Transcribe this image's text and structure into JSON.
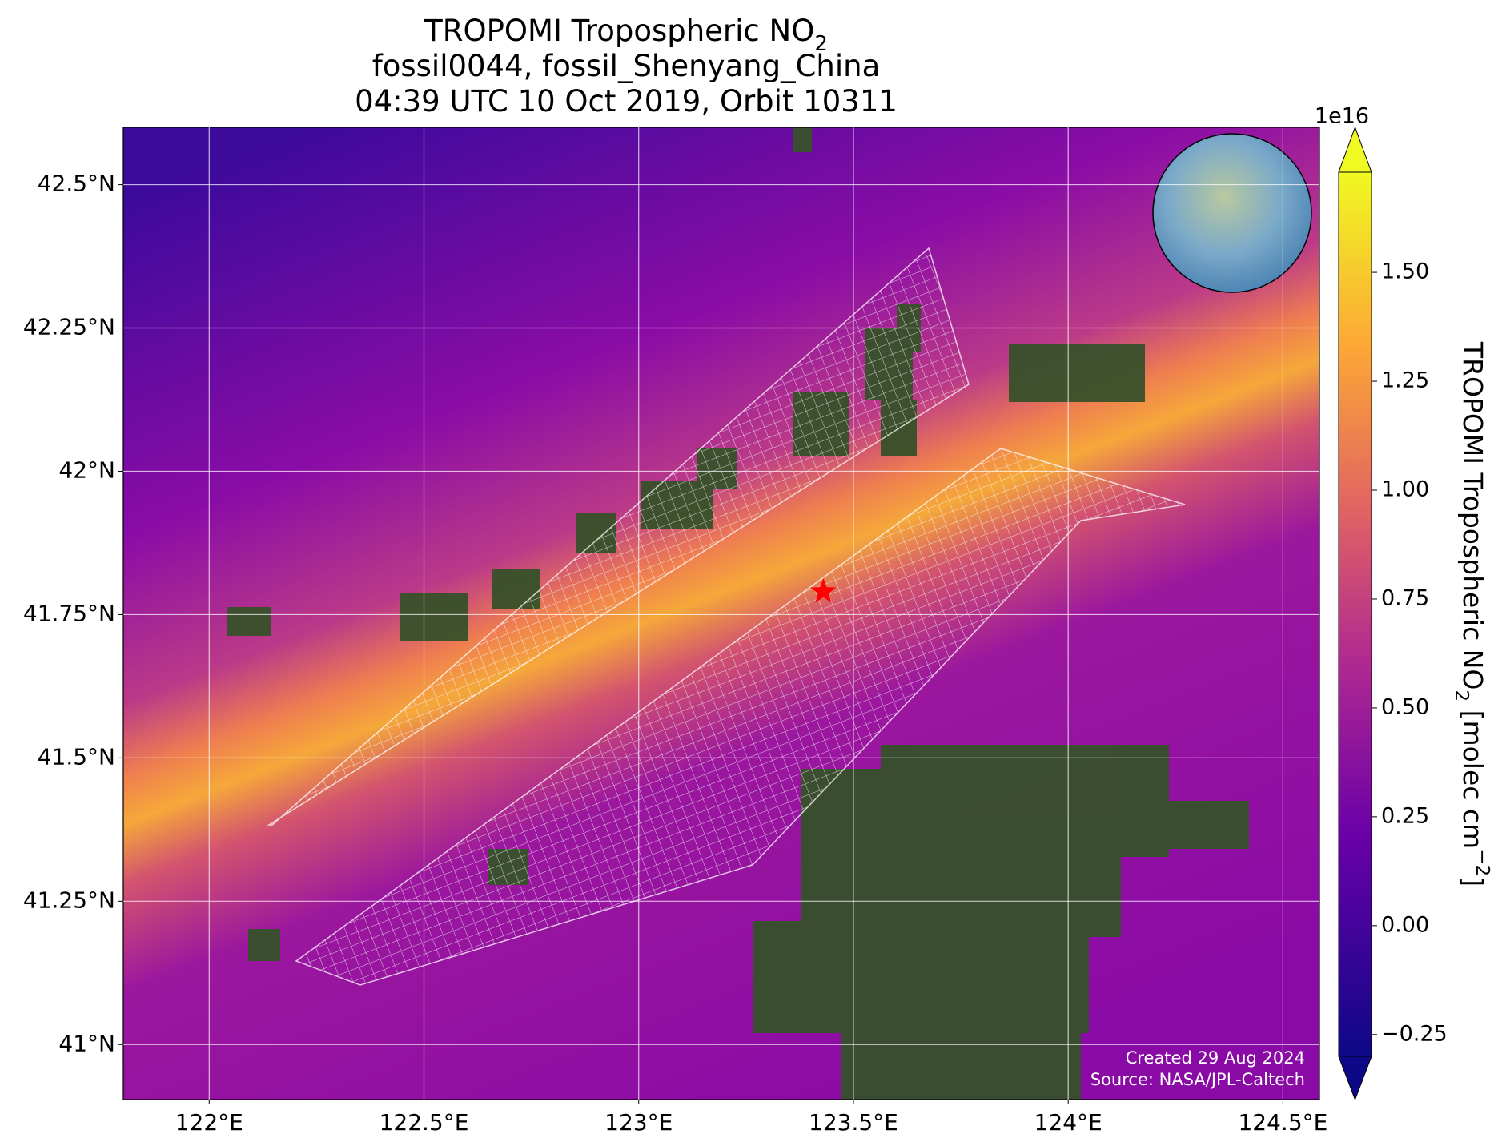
{
  "chart_data": {
    "type": "map",
    "title": [
      [
        {
          "text": "TROPOMI Tropospheric NO"
        },
        {
          "sub": "2"
        }
      ],
      [
        {
          "text": "fossil0044, fossil_Shenyang_China"
        }
      ],
      [
        {
          "text": "04:39 UTC 10 Oct 2019, Orbit 10311"
        }
      ]
    ],
    "xlim": [
      121.8,
      124.585
    ],
    "ylim": [
      40.904,
      42.6
    ],
    "xticks": [
      {
        "value": 122,
        "label": "122°E"
      },
      {
        "value": 122.5,
        "label": "122.5°E"
      },
      {
        "value": 123,
        "label": "123°E"
      },
      {
        "value": 123.5,
        "label": "123.5°E"
      },
      {
        "value": 124,
        "label": "124°E"
      },
      {
        "value": 124.5,
        "label": "124.5°E"
      }
    ],
    "yticks": [
      {
        "value": 41,
        "label": "41°N"
      },
      {
        "value": 41.25,
        "label": "41.25°N"
      },
      {
        "value": 41.5,
        "label": "41.5°N"
      },
      {
        "value": 41.75,
        "label": "41.75°N"
      },
      {
        "value": 42,
        "label": "42°N"
      },
      {
        "value": 42.25,
        "label": "42.25°N"
      },
      {
        "value": 42.5,
        "label": "42.5°N"
      }
    ],
    "grid": true,
    "marker": {
      "x": 123.43,
      "y": 41.79,
      "color": "#ff0000"
    },
    "colorbar": {
      "lim": [
        -0.3,
        1.73
      ],
      "ticks": [
        {
          "value": -0.25,
          "label": "−0.25"
        },
        {
          "value": 0,
          "label": "0.00"
        },
        0.25,
        {
          "value": 0.5,
          "label": "0.50"
        },
        0.75,
        {
          "value": 1,
          "label": "1.00"
        },
        1.25,
        {
          "value": 1.5,
          "label": "1.50"
        }
      ],
      "exponent": "1e16",
      "label": [
        {
          "text": "TROPOMI Tropospheric NO"
        },
        {
          "sub": "2"
        },
        {
          "text": " [molec cm"
        },
        {
          "sup": "−2"
        },
        {
          "text": "]"
        }
      ]
    },
    "credits": [
      "Created 29 Aug 2024",
      "Source: NASA/JPL-Caltech"
    ]
  }
}
